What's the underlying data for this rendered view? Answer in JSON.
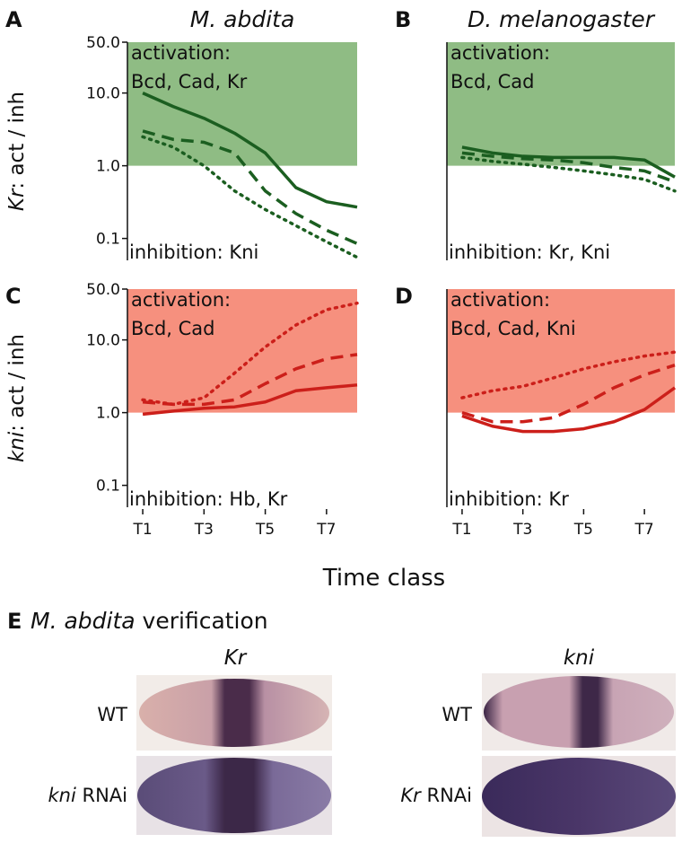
{
  "chart_data": [
    {
      "type": "line",
      "panel": "A",
      "title": "M. abdita",
      "ylabel": {
        "gene": "Kr",
        "rest": ": act / inh"
      },
      "log_y": true,
      "ylim": [
        0.05,
        50
      ],
      "yticks": [
        {
          "value": 50,
          "label": "50.0"
        },
        {
          "value": 10,
          "label": "10.0"
        },
        {
          "value": 1,
          "label": "1.0"
        },
        0.1
      ],
      "xlim": [
        0.5,
        8
      ],
      "x": [
        1,
        2,
        3,
        4,
        5,
        6,
        7,
        8
      ],
      "shade": {
        "range": [
          1,
          50
        ],
        "color": "#8fbc84"
      },
      "activation_text": [
        "activation:",
        "Bcd, Cad, Kr"
      ],
      "inhibition_text": "inhibition: Kni",
      "series": [
        {
          "color": "#1b5e20",
          "dash": "solid",
          "values": [
            10,
            6.5,
            4.5,
            2.8,
            1.5,
            0.5,
            0.32,
            0.27
          ]
        },
        {
          "color": "#1b5e20",
          "dash": "dashed",
          "values": [
            3,
            2.3,
            2.1,
            1.5,
            0.45,
            0.22,
            0.13,
            0.085
          ]
        },
        {
          "color": "#1b5e20",
          "dash": "dotted",
          "values": [
            2.5,
            1.8,
            1.0,
            0.45,
            0.25,
            0.15,
            0.09,
            0.055
          ]
        }
      ]
    },
    {
      "type": "line",
      "panel": "B",
      "title": "D. melanogaster",
      "log_y": true,
      "ylim": [
        0.05,
        50
      ],
      "xlim": [
        0.5,
        8
      ],
      "x": [
        1,
        2,
        3,
        4,
        5,
        6,
        7,
        8
      ],
      "shade": {
        "range": [
          1,
          50
        ],
        "color": "#8fbc84"
      },
      "activation_text": [
        "activation:",
        "Bcd, Cad"
      ],
      "inhibition_text": "inhibition: Kr, Kni",
      "series": [
        {
          "color": "#1b5e20",
          "dash": "solid",
          "values": [
            1.8,
            1.5,
            1.35,
            1.3,
            1.3,
            1.3,
            1.2,
            0.7
          ]
        },
        {
          "color": "#1b5e20",
          "dash": "dashed",
          "values": [
            1.5,
            1.35,
            1.25,
            1.2,
            1.1,
            0.95,
            0.85,
            0.6
          ]
        },
        {
          "color": "#1b5e20",
          "dash": "dotted",
          "values": [
            1.3,
            1.15,
            1.05,
            0.95,
            0.85,
            0.75,
            0.65,
            0.45
          ]
        }
      ]
    },
    {
      "type": "line",
      "panel": "C",
      "ylabel": {
        "gene": "kni",
        "rest": ": act / inh"
      },
      "log_y": true,
      "ylim": [
        0.05,
        50
      ],
      "yticks": [
        {
          "value": 50,
          "label": "50.0"
        },
        {
          "value": 10,
          "label": "10.0"
        },
        {
          "value": 1,
          "label": "1.0"
        },
        0.1
      ],
      "xlim": [
        0.5,
        8
      ],
      "x": [
        1,
        2,
        3,
        4,
        5,
        6,
        7,
        8
      ],
      "xticks": [
        {
          "value": 1,
          "label": "T1"
        },
        {
          "value": 3,
          "label": "T3"
        },
        {
          "value": 5,
          "label": "T5"
        },
        {
          "value": 7,
          "label": "T7"
        }
      ],
      "shade": {
        "range": [
          1,
          50
        ],
        "color": "#f6907e"
      },
      "activation_text": [
        "activation:",
        "Bcd, Cad"
      ],
      "inhibition_text": "inhibition: Hb, Kr",
      "series": [
        {
          "color": "#cc1f1a",
          "dash": "solid",
          "values": [
            0.95,
            1.05,
            1.15,
            1.2,
            1.4,
            2.0,
            2.2,
            2.4
          ]
        },
        {
          "color": "#cc1f1a",
          "dash": "dashed",
          "values": [
            1.4,
            1.3,
            1.3,
            1.5,
            2.5,
            4,
            5.5,
            6.3
          ]
        },
        {
          "color": "#cc1f1a",
          "dash": "dotted",
          "values": [
            1.5,
            1.3,
            1.6,
            3.5,
            8,
            16,
            26,
            32
          ]
        }
      ]
    },
    {
      "type": "line",
      "panel": "D",
      "log_y": true,
      "ylim": [
        0.05,
        50
      ],
      "xlim": [
        0.5,
        8
      ],
      "x": [
        1,
        2,
        3,
        4,
        5,
        6,
        7,
        8
      ],
      "xticks": [
        {
          "value": 1,
          "label": "T1"
        },
        {
          "value": 3,
          "label": "T3"
        },
        {
          "value": 5,
          "label": "T5"
        },
        {
          "value": 7,
          "label": "T7"
        }
      ],
      "shade": {
        "range": [
          1,
          50
        ],
        "color": "#f6907e"
      },
      "activation_text": [
        "activation:",
        "Bcd, Cad, Kni"
      ],
      "inhibition_text": "inhibition: Kr",
      "series": [
        {
          "color": "#cc1f1a",
          "dash": "solid",
          "values": [
            0.9,
            0.65,
            0.55,
            0.55,
            0.6,
            0.75,
            1.1,
            2.2
          ]
        },
        {
          "color": "#cc1f1a",
          "dash": "dashed",
          "values": [
            1,
            0.75,
            0.75,
            0.85,
            1.3,
            2.2,
            3.3,
            4.5
          ]
        },
        {
          "color": "#cc1f1a",
          "dash": "dotted",
          "values": [
            1.6,
            2,
            2.3,
            3,
            4,
            5,
            6,
            6.8
          ]
        }
      ]
    }
  ],
  "shared_x_label": "Time class",
  "panel_e": {
    "letter": "E",
    "title": {
      "species": "M. abdita",
      "rest": "verification"
    },
    "columns": [
      "Kr",
      "kni"
    ],
    "rows": [
      [
        {
          "gene": "",
          "rest": "WT"
        },
        {
          "gene": "kni",
          "rest": "RNAi"
        }
      ],
      [
        {
          "gene": "",
          "rest": "WT"
        },
        {
          "gene": "Kr",
          "rest": "RNAi"
        }
      ]
    ]
  }
}
